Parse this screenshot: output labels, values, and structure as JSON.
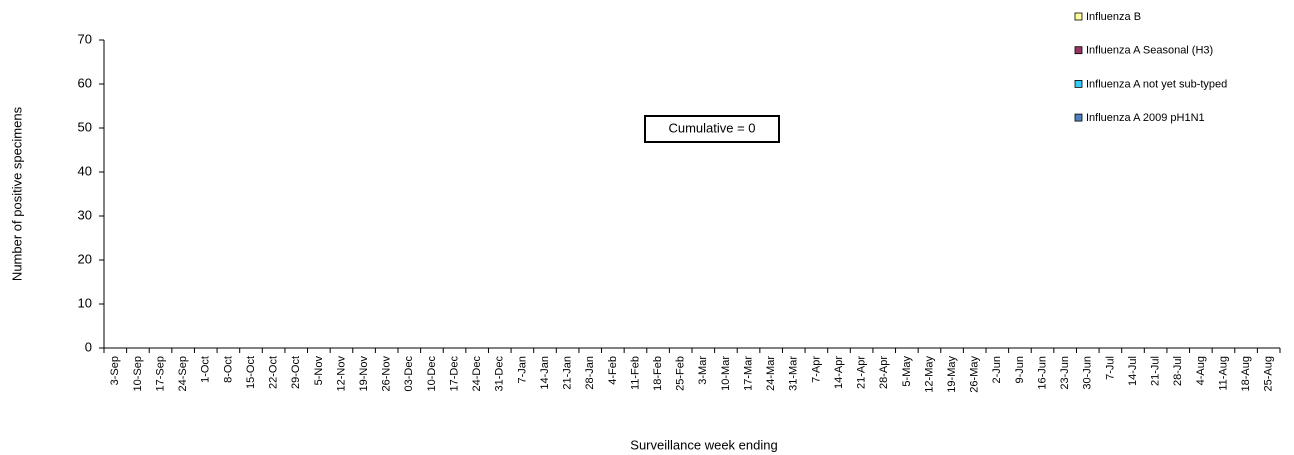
{
  "chart_data": {
    "type": "bar",
    "stacked": true,
    "x_label": "Surveillance week ending",
    "y_label": "Number of positive specimens",
    "annotation": "Cumulative = 0",
    "categories": [
      "3-Sep",
      "10-Sep",
      "17-Sep",
      "24-Sep",
      "1-Oct",
      "8-Oct",
      "15-Oct",
      "22-Oct",
      "29-Oct",
      "5-Nov",
      "12-Nov",
      "19-Nov",
      "26-Nov",
      "03-Dec",
      "10-Dec",
      "17-Dec",
      "24-Dec",
      "31-Dec",
      "7-Jan",
      "14-Jan",
      "21-Jan",
      "28-Jan",
      "4-Feb",
      "11-Feb",
      "18-Feb",
      "25-Feb",
      "3-Mar",
      "10-Mar",
      "17-Mar",
      "24-Mar",
      "31-Mar",
      "7-Apr",
      "14-Apr",
      "21-Apr",
      "28-Apr",
      "5-May",
      "12-May",
      "19-May",
      "26-May",
      "2-Jun",
      "9-Jun",
      "16-Jun",
      "23-Jun",
      "30-Jun",
      "7-Jul",
      "14-Jul",
      "21-Jul",
      "28-Jul",
      "4-Aug",
      "11-Aug",
      "18-Aug",
      "25-Aug"
    ],
    "series": [
      {
        "name": "Influenza B",
        "color": "#ffff99",
        "values": [
          0,
          0,
          0,
          0,
          0,
          0,
          0,
          0,
          0,
          0,
          0,
          0,
          0,
          0,
          0,
          0,
          0,
          0,
          0,
          0,
          0,
          0,
          0,
          0,
          0,
          0,
          0,
          0,
          0,
          0,
          0,
          0,
          0,
          0,
          0,
          0,
          0,
          0,
          0,
          0,
          0,
          0,
          0,
          0,
          0,
          0,
          0,
          0,
          0,
          0,
          0,
          0
        ]
      },
      {
        "name": "Influenza A Seasonal (H3)",
        "color": "#993366",
        "values": [
          0,
          0,
          0,
          0,
          0,
          0,
          0,
          0,
          0,
          0,
          0,
          0,
          0,
          0,
          0,
          0,
          0,
          0,
          0,
          0,
          0,
          0,
          0,
          0,
          0,
          0,
          0,
          0,
          0,
          0,
          0,
          0,
          0,
          0,
          0,
          0,
          0,
          0,
          0,
          0,
          0,
          0,
          0,
          0,
          0,
          0,
          0,
          0,
          0,
          0,
          0,
          0
        ]
      },
      {
        "name": "Influenza A not yet sub-typed",
        "color": "#33ccff",
        "values": [
          0,
          0,
          0,
          0,
          0,
          0,
          0,
          0,
          0,
          0,
          0,
          0,
          0,
          0,
          0,
          0,
          0,
          0,
          0,
          0,
          0,
          0,
          0,
          0,
          0,
          0,
          0,
          0,
          0,
          0,
          0,
          0,
          0,
          0,
          0,
          0,
          0,
          0,
          0,
          0,
          0,
          0,
          0,
          0,
          0,
          0,
          0,
          0,
          0,
          0,
          0,
          0
        ]
      },
      {
        "name": "Influenza A 2009 pH1N1",
        "color": "#4f81bd",
        "values": [
          0,
          0,
          0,
          0,
          0,
          0,
          0,
          0,
          0,
          0,
          0,
          0,
          0,
          0,
          0,
          0,
          0,
          0,
          0,
          0,
          0,
          0,
          0,
          0,
          0,
          0,
          0,
          0,
          0,
          0,
          0,
          0,
          0,
          0,
          0,
          0,
          0,
          0,
          0,
          0,
          0,
          0,
          0,
          0,
          0,
          0,
          0,
          0,
          0,
          0,
          0,
          0
        ]
      }
    ],
    "ylim": [
      0,
      70
    ],
    "yticks": [
      0,
      10,
      20,
      30,
      40,
      50,
      60,
      70
    ],
    "grid": false
  }
}
